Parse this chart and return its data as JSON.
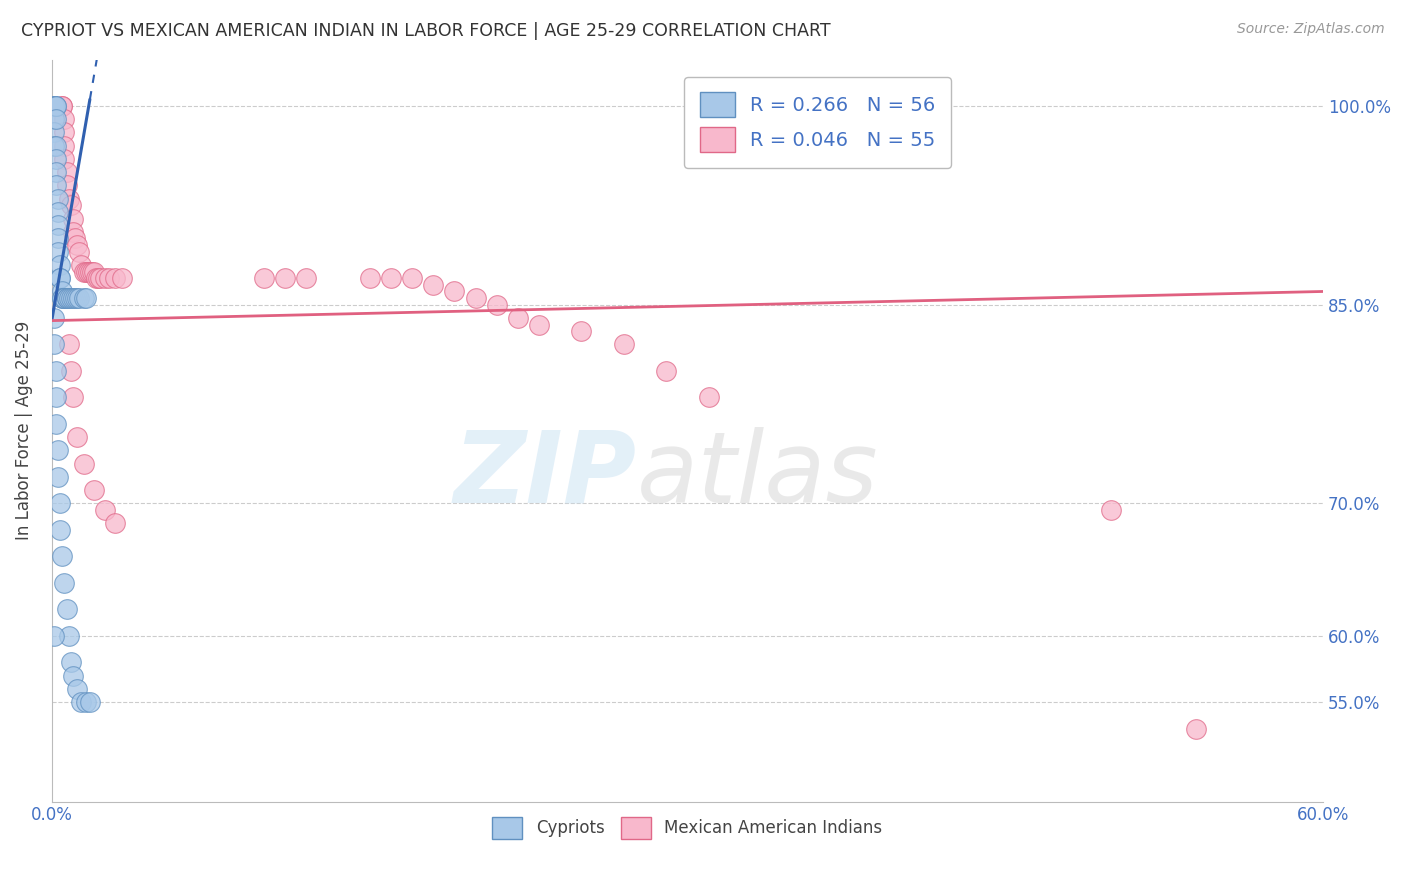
{
  "title": "CYPRIOT VS MEXICAN AMERICAN INDIAN IN LABOR FORCE | AGE 25-29 CORRELATION CHART",
  "source": "Source: ZipAtlas.com",
  "ylabel": "In Labor Force | Age 25-29",
  "xmin": 0.0,
  "xmax": 0.6,
  "ymin": 0.475,
  "ymax": 1.035,
  "yticks": [
    0.55,
    0.6,
    0.7,
    0.85,
    1.0
  ],
  "ytick_labels": [
    "55.0%",
    "60.0%",
    "70.0%",
    "85.0%",
    "100.0%"
  ],
  "xticks": [
    0.0,
    0.1,
    0.2,
    0.3,
    0.4,
    0.5,
    0.6
  ],
  "xtick_labels": [
    "0.0%",
    "",
    "",
    "",
    "",
    "",
    "60.0%"
  ],
  "cypriot_color": "#a8c8e8",
  "mexican_color": "#f8b8cc",
  "cypriot_edge": "#6090c0",
  "mexican_edge": "#e06888",
  "trend_cypriot_color": "#3060b0",
  "trend_mexican_color": "#e06080",
  "cypriot_scatter_x": [
    0.001,
    0.001,
    0.001,
    0.001,
    0.001,
    0.001,
    0.002,
    0.002,
    0.002,
    0.002,
    0.002,
    0.002,
    0.002,
    0.003,
    0.003,
    0.003,
    0.003,
    0.003,
    0.004,
    0.004,
    0.004,
    0.005,
    0.005,
    0.005,
    0.006,
    0.006,
    0.007,
    0.007,
    0.008,
    0.009,
    0.01,
    0.011,
    0.012,
    0.013,
    0.015,
    0.016,
    0.001,
    0.001,
    0.002,
    0.002,
    0.002,
    0.003,
    0.003,
    0.004,
    0.004,
    0.005,
    0.006,
    0.007,
    0.008,
    0.009,
    0.01,
    0.012,
    0.014,
    0.016,
    0.018,
    0.001
  ],
  "cypriot_scatter_y": [
    1.0,
    1.0,
    1.0,
    0.99,
    0.98,
    0.97,
    1.0,
    1.0,
    0.99,
    0.97,
    0.96,
    0.95,
    0.94,
    0.93,
    0.92,
    0.91,
    0.9,
    0.89,
    0.88,
    0.87,
    0.87,
    0.86,
    0.855,
    0.855,
    0.855,
    0.855,
    0.855,
    0.855,
    0.855,
    0.855,
    0.855,
    0.855,
    0.855,
    0.855,
    0.855,
    0.855,
    0.84,
    0.82,
    0.8,
    0.78,
    0.76,
    0.74,
    0.72,
    0.7,
    0.68,
    0.66,
    0.64,
    0.62,
    0.6,
    0.58,
    0.57,
    0.56,
    0.55,
    0.55,
    0.55,
    0.6
  ],
  "mexican_scatter_x": [
    0.005,
    0.005,
    0.006,
    0.006,
    0.006,
    0.006,
    0.007,
    0.007,
    0.008,
    0.009,
    0.01,
    0.01,
    0.011,
    0.012,
    0.013,
    0.014,
    0.015,
    0.016,
    0.017,
    0.018,
    0.019,
    0.02,
    0.021,
    0.022,
    0.023,
    0.025,
    0.027,
    0.03,
    0.033,
    0.1,
    0.11,
    0.12,
    0.15,
    0.16,
    0.17,
    0.18,
    0.19,
    0.2,
    0.21,
    0.22,
    0.23,
    0.25,
    0.27,
    0.29,
    0.31,
    0.5,
    0.54,
    0.008,
    0.009,
    0.01,
    0.012,
    0.015,
    0.02,
    0.025,
    0.03
  ],
  "mexican_scatter_y": [
    1.0,
    1.0,
    0.99,
    0.98,
    0.97,
    0.96,
    0.95,
    0.94,
    0.93,
    0.925,
    0.915,
    0.905,
    0.9,
    0.895,
    0.89,
    0.88,
    0.875,
    0.875,
    0.875,
    0.875,
    0.875,
    0.875,
    0.87,
    0.87,
    0.87,
    0.87,
    0.87,
    0.87,
    0.87,
    0.87,
    0.87,
    0.87,
    0.87,
    0.87,
    0.87,
    0.865,
    0.86,
    0.855,
    0.85,
    0.84,
    0.835,
    0.83,
    0.82,
    0.8,
    0.78,
    0.695,
    0.53,
    0.82,
    0.8,
    0.78,
    0.75,
    0.73,
    0.71,
    0.695,
    0.685
  ],
  "trend_cyp_x0": 0.0,
  "trend_cyp_y0": 0.838,
  "trend_cyp_x1": 0.018,
  "trend_cyp_y1": 1.005,
  "trend_mex_x0": 0.0,
  "trend_mex_y0": 0.838,
  "trend_mex_x1": 0.6,
  "trend_mex_y1": 0.86
}
